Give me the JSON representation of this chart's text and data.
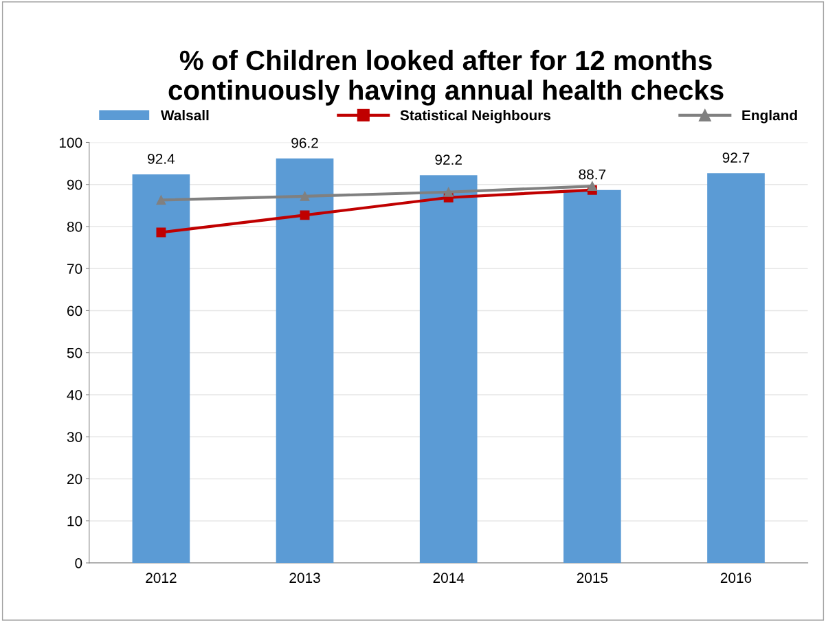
{
  "chart_data": {
    "type": "bar",
    "title": "% of Children looked after for 12 months continuously having annual health checks",
    "categories": [
      "2012",
      "2013",
      "2014",
      "2015",
      "2016"
    ],
    "series": [
      {
        "name": "Walsall",
        "color": "#5b9bd5",
        "values": [
          92.4,
          96.2,
          92.2,
          88.7,
          92.7
        ],
        "value_labels": [
          "92.4",
          "96.2",
          "92.2",
          "88.7",
          "92.7"
        ]
      },
      {
        "name": "Statistical Neighbours",
        "type": "line",
        "color": "#c00000",
        "marker": "square",
        "values": [
          78.6,
          82.7,
          86.9,
          88.7,
          null
        ]
      },
      {
        "name": "England",
        "type": "line",
        "color": "#808080",
        "marker": "triangle",
        "values": [
          86.3,
          87.2,
          88.2,
          89.6,
          null
        ]
      }
    ],
    "ylim": [
      0,
      100
    ],
    "yticks": [
      0,
      10,
      20,
      30,
      40,
      50,
      60,
      70,
      80,
      90,
      100
    ],
    "grid": "y",
    "legend": "top"
  }
}
